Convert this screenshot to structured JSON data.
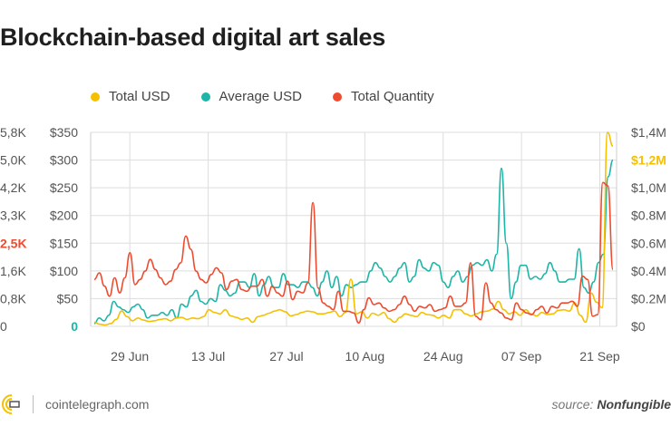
{
  "title": "Blockchain-based digital art sales",
  "legend": [
    {
      "label": "Total USD",
      "color": "#f5c000"
    },
    {
      "label": "Average USD",
      "color": "#1db5a8"
    },
    {
      "label": "Total Quantity",
      "color": "#ee4b2f"
    }
  ],
  "footer": {
    "site": "cointelegraph.com",
    "source_prefix": "source: ",
    "source_name": "Nonfungible"
  },
  "colors": {
    "total_usd": "#f5c000",
    "average_usd": "#1db5a8",
    "total_quantity": "#ee4b2f",
    "grid": "#dddddd"
  },
  "chart_data": {
    "type": "line",
    "title": "Blockchain-based digital art sales",
    "x_ticks": [
      "29 Jun",
      "13 Jul",
      "27 Jul",
      "10 Aug",
      "24 Aug",
      "07 Sep",
      "21 Sep"
    ],
    "x_tick_days": [
      7,
      21,
      35,
      49,
      63,
      77,
      91
    ],
    "x_range_days": [
      0,
      94
    ],
    "axes": {
      "quantity": {
        "ticks": [
          "0",
          "0,8K",
          "1,6K",
          "2,5K",
          "3,3K",
          "4,2K",
          "5,0K",
          "5,8K"
        ],
        "highlight_tick": "2,5K",
        "highlight_color": "#ee4b2f",
        "range": [
          0,
          5800
        ]
      },
      "average_usd": {
        "ticks": [
          "0",
          "$50",
          "$100",
          "$150",
          "$200",
          "$250",
          "$300",
          "$350"
        ],
        "highlight_tick": "0",
        "highlight_color": "#1db5a8",
        "range": [
          0,
          350
        ]
      },
      "total_usd": {
        "ticks": [
          "$0",
          "$0.2M",
          "$0.4M",
          "$0.6M",
          "$0.8M",
          "$1,0M",
          "$1,2M",
          "$1,4M"
        ],
        "highlight_tick": "$1,2M",
        "highlight_color": "#f5c000",
        "range": [
          0,
          1400000
        ]
      }
    },
    "series": [
      {
        "name": "Total USD",
        "axis": "total_usd",
        "values": [
          30000,
          15000,
          10000,
          20000,
          50000,
          110000,
          70000,
          40000,
          60000,
          45000,
          35000,
          40000,
          50000,
          55000,
          40000,
          60000,
          65000,
          50000,
          60000,
          55000,
          70000,
          120000,
          100000,
          90000,
          120000,
          75000,
          65000,
          50000,
          60000,
          30000,
          70000,
          80000,
          95000,
          110000,
          120000,
          105000,
          75000,
          85000,
          100000,
          110000,
          105000,
          90000,
          90000,
          100000,
          110000,
          70000,
          100000,
          340000,
          90000,
          105000,
          60000,
          95000,
          80000,
          100000,
          55000,
          30000,
          65000,
          90000,
          80000,
          70000,
          100000,
          85000,
          80000,
          60000,
          80000,
          60000,
          120000,
          120000,
          90000,
          75000,
          90000,
          105000,
          110000,
          125000,
          180000,
          120000,
          90000,
          105000,
          80000,
          120000,
          90000,
          75000,
          100000,
          85000,
          90000,
          115000,
          120000,
          110000,
          170000,
          80000,
          30000,
          240000,
          175000,
          135000,
          1400000,
          1300000
        ]
      },
      {
        "name": "Average USD",
        "axis": "average_usd",
        "values": [
          5,
          15,
          10,
          20,
          45,
          35,
          30,
          25,
          35,
          40,
          30,
          15,
          20,
          20,
          25,
          20,
          30,
          15,
          40,
          35,
          55,
          65,
          45,
          40,
          50,
          45,
          75,
          65,
          55,
          60,
          80,
          80,
          70,
          95,
          55,
          75,
          90,
          70,
          70,
          95,
          75,
          75,
          70,
          80,
          80,
          70,
          55,
          80,
          100,
          70,
          90,
          55,
          75,
          70,
          75,
          80,
          80,
          100,
          115,
          105,
          90,
          80,
          90,
          105,
          115,
          80,
          90,
          120,
          105,
          100,
          115,
          110,
          80,
          70,
          90,
          100,
          80,
          90,
          110,
          115,
          110,
          120,
          100,
          130,
          285,
          150,
          50,
          80,
          110,
          110,
          85,
          90,
          85,
          95,
          115,
          100,
          80,
          80,
          85,
          85,
          140,
          70,
          60,
          80,
          115,
          130,
          270,
          300
        ]
      },
      {
        "name": "Total Quantity",
        "axis": "quantity",
        "values": [
          1400,
          1600,
          1200,
          900,
          1450,
          1000,
          1450,
          2200,
          1250,
          1400,
          1650,
          2000,
          1700,
          1450,
          1250,
          1350,
          1700,
          1900,
          2700,
          2300,
          1650,
          1400,
          1300,
          1550,
          1750,
          1600,
          1100,
          1350,
          1400,
          1100,
          1050,
          1200,
          1200,
          1400,
          900,
          1200,
          1000,
          900,
          1350,
          800,
          1050,
          1000,
          1300,
          3700,
          1150,
          700,
          600,
          500,
          1050,
          450,
          450,
          400,
          100,
          500,
          850,
          650,
          700,
          550,
          450,
          500,
          650,
          900,
          650,
          450,
          600,
          550,
          650,
          450,
          500,
          550,
          900,
          600,
          600,
          700,
          1900,
          300,
          200,
          1300,
          700,
          500,
          400,
          250,
          200,
          700,
          500,
          400,
          350,
          500,
          600,
          400,
          600,
          550,
          700,
          700,
          750,
          600,
          1500,
          1400,
          300,
          350,
          4300,
          4200,
          1700
        ]
      }
    ]
  }
}
